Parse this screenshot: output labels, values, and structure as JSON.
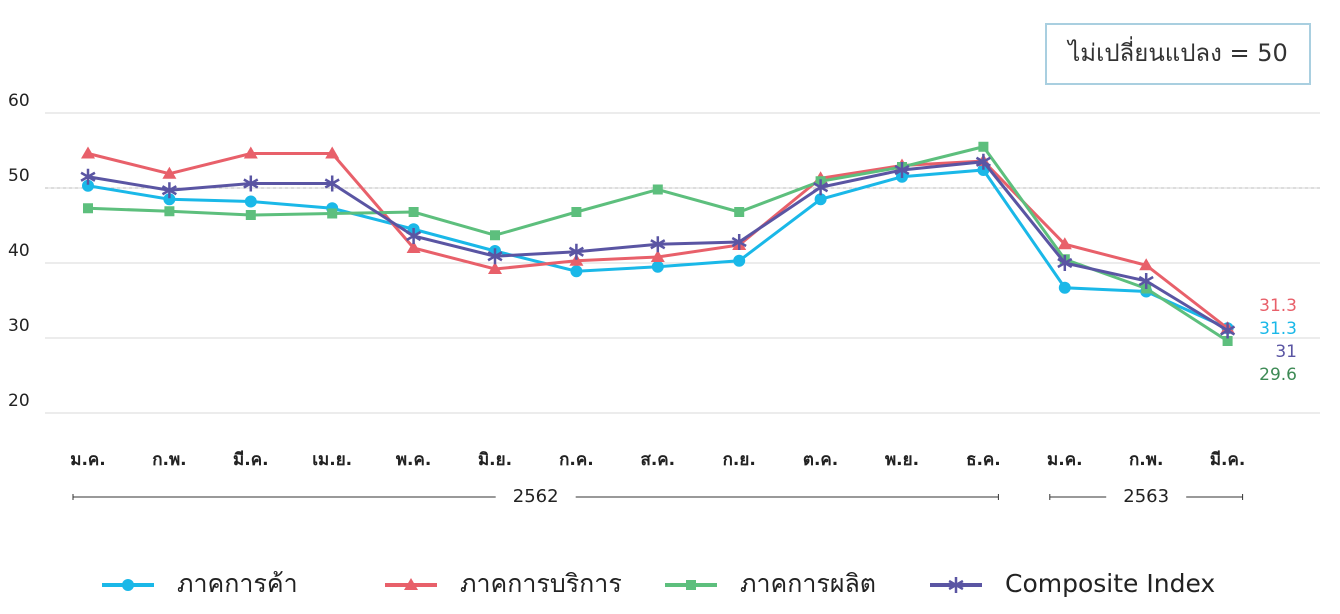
{
  "chart_data": {
    "type": "line",
    "categories": [
      "ม.ค.",
      "ก.พ.",
      "มี.ค.",
      "เม.ย.",
      "พ.ค.",
      "มิ.ย.",
      "ก.ค.",
      "ส.ค.",
      "ก.ย.",
      "ต.ค.",
      "พ.ย.",
      "ธ.ค.",
      "ม.ค.",
      "ก.พ.",
      "มี.ค."
    ],
    "x_groups": [
      {
        "label": "2562",
        "count": 12
      },
      {
        "label": "2563",
        "count": 3
      }
    ],
    "series": [
      {
        "name": "ภาคการค้า",
        "color": "#1ab8e8",
        "marker": "circle",
        "values": [
          50.3,
          48.5,
          48.2,
          47.3,
          44.5,
          41.6,
          38.9,
          39.5,
          40.3,
          48.5,
          51.5,
          52.4,
          36.7,
          36.2,
          31.3
        ]
      },
      {
        "name": "ภาคการบริการ",
        "color": "#e8606a",
        "marker": "triangle",
        "values": [
          54.6,
          51.9,
          54.6,
          54.6,
          42.0,
          39.2,
          40.3,
          40.8,
          42.4,
          51.3,
          53.0,
          53.6,
          42.5,
          39.7,
          31.3
        ]
      },
      {
        "name": "ภาคการผลิต",
        "color": "#5dbf7d",
        "marker": "square",
        "values": [
          47.3,
          46.9,
          46.4,
          46.6,
          46.8,
          43.7,
          46.8,
          49.8,
          46.8,
          50.9,
          52.8,
          55.5,
          40.5,
          36.6,
          29.6
        ]
      },
      {
        "name": "Composite Index",
        "color": "#5a55a3",
        "marker": "star",
        "values": [
          51.5,
          49.7,
          50.6,
          50.6,
          43.6,
          40.9,
          41.5,
          42.5,
          42.8,
          50.1,
          52.4,
          53.5,
          40.0,
          37.6,
          31.0
        ]
      }
    ],
    "last_value_label_colors": [
      "#1ab8e8",
      "#e8606a",
      "#3d8a55",
      "#5a55a3"
    ],
    "reference": {
      "label": "ไม่เปลี่ยนแปลง = 50",
      "value": 50
    },
    "ylim": [
      20,
      60
    ],
    "yticks": [
      20,
      30,
      40,
      50,
      60
    ],
    "grid": true
  }
}
